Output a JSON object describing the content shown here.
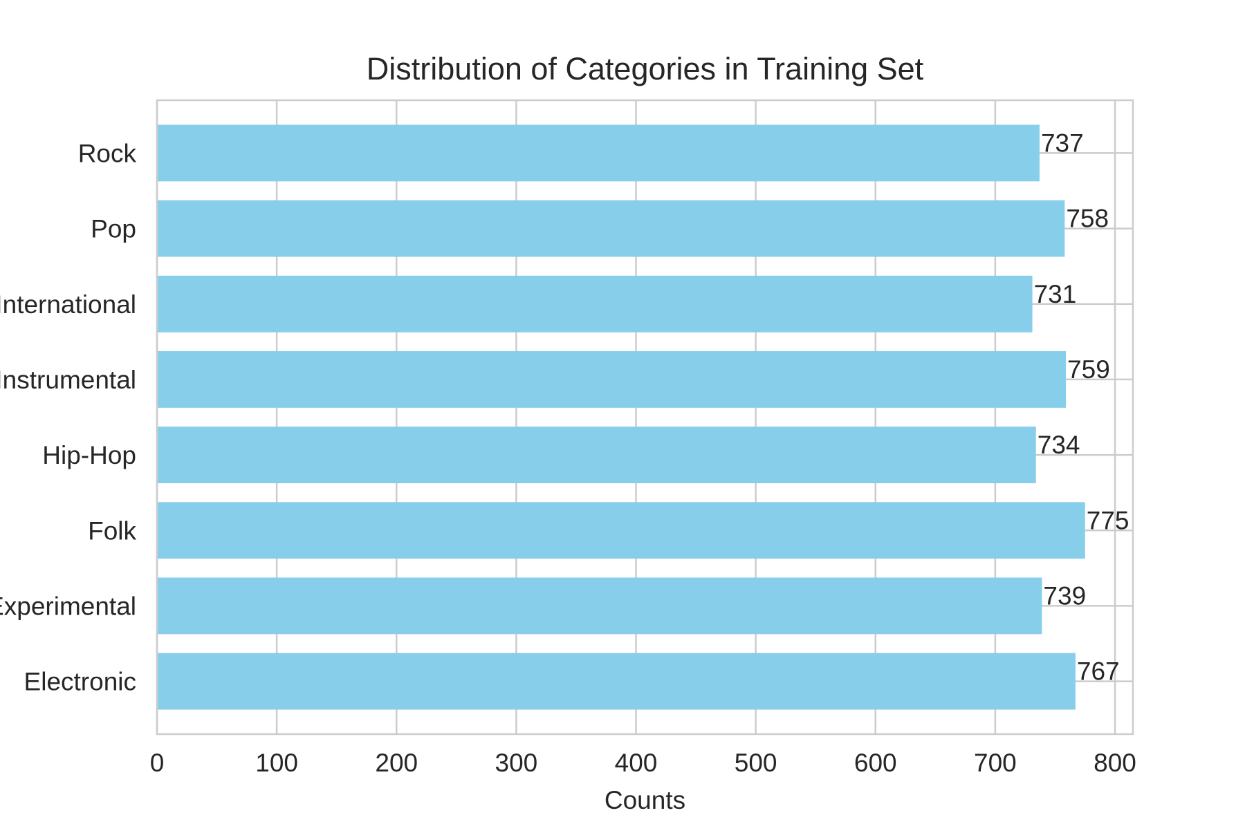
{
  "chart_data": {
    "type": "bar",
    "orientation": "horizontal",
    "title": "Distribution of Categories in Training Set",
    "xlabel": "Counts",
    "ylabel": "",
    "categories": [
      "Electronic",
      "Experimental",
      "Folk",
      "Hip-Hop",
      "Instrumental",
      "International",
      "Pop",
      "Rock"
    ],
    "values": [
      767,
      739,
      775,
      734,
      759,
      731,
      758,
      737
    ],
    "xlim": [
      0,
      815
    ],
    "xticks": [
      0,
      100,
      200,
      300,
      400,
      500,
      600,
      700,
      800
    ],
    "grid": true,
    "data_labels": true,
    "bar_color": "#87CEEB",
    "text_color": "#262626",
    "grid_color": "#cccccc"
  }
}
